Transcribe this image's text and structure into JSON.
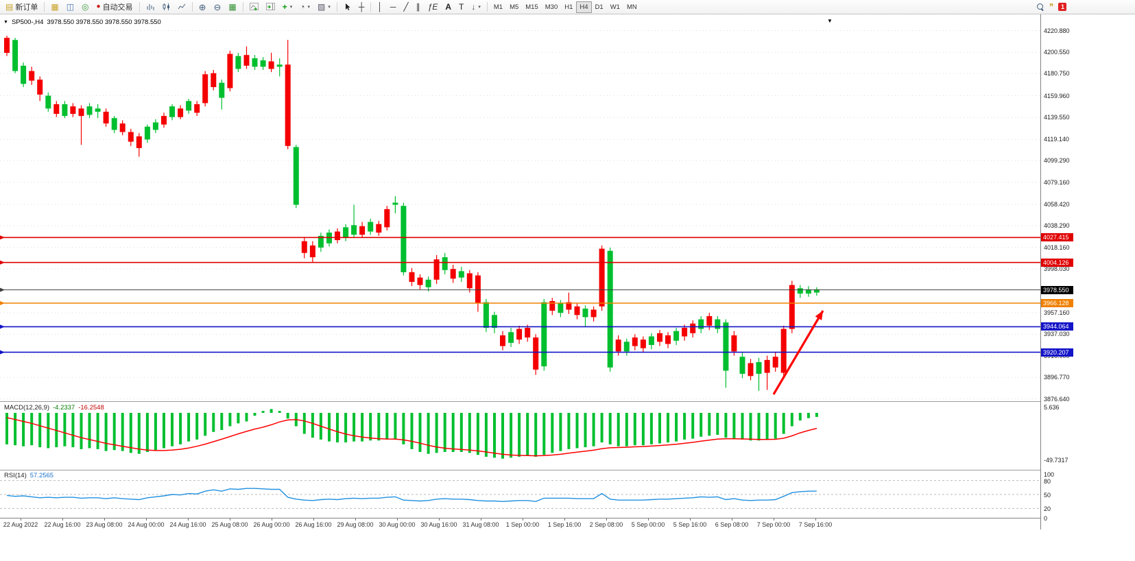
{
  "toolbar": {
    "new_order_label": "新订单",
    "auto_trading_label": "自动交易",
    "text_tool_label": "A",
    "label_tool_label": "T",
    "timeframes": [
      "M1",
      "M5",
      "M15",
      "M30",
      "H1",
      "H4",
      "D1",
      "W1",
      "MN"
    ],
    "active_timeframe": "H4",
    "notification_count": "1"
  },
  "chart_header": {
    "symbol_period": "SP500-,H4",
    "quote_line": "3978.550 3978.550 3978.550 3978.550"
  },
  "price_axis": {
    "labels": [
      "4220.880",
      "4200.550",
      "4180.750",
      "4159.960",
      "4139.550",
      "4119.140",
      "4099.290",
      "4079.160",
      "4058.420",
      "4038.290",
      "4018.160",
      "3998.030",
      "3957.160",
      "3937.030",
      "3916.900",
      "3896.770",
      "3876.640"
    ],
    "tags": [
      {
        "text": "4027.415",
        "value": 4027.415,
        "color": "#e00000"
      },
      {
        "text": "4004.126",
        "value": 4004.126,
        "color": "#e00000"
      },
      {
        "text": "3978.550",
        "value": 3978.55,
        "color": "#000000"
      },
      {
        "text": "3966.128",
        "value": 3966.128,
        "color": "#f08000"
      },
      {
        "text": "3944.064",
        "value": 3944.064,
        "color": "#1414c8"
      },
      {
        "text": "3920.207",
        "value": 3920.207,
        "color": "#1414c8"
      }
    ]
  },
  "chart_data": {
    "type": "candlestick",
    "symbol": "SP500-",
    "timeframe": "H4",
    "y_range": [
      3876.64,
      4220.88
    ],
    "candle_colors": {
      "r": "#f40000",
      "g": "#00bf2f"
    },
    "x_labels": [
      "22 Aug 2022",
      "22 Aug 16:00",
      "23 Aug 08:00",
      "24 Aug 00:00",
      "24 Aug 16:00",
      "25 Aug 08:00",
      "26 Aug 00:00",
      "26 Aug 16:00",
      "29 Aug 08:00",
      "30 Aug 00:00",
      "30 Aug 16:00",
      "31 Aug 08:00",
      "1 Sep 00:00",
      "1 Sep 16:00",
      "2 Sep 08:00",
      "5 Sep 00:00",
      "5 Sep 16:00",
      "6 Sep 08:00",
      "7 Sep 00:00",
      "7 Sep 16:00"
    ],
    "hlines": [
      {
        "price": 4027.415,
        "color": "#e00000"
      },
      {
        "price": 4004.126,
        "color": "#e00000"
      },
      {
        "price": 3978.55,
        "color": "#404040"
      },
      {
        "price": 3966.128,
        "color": "#f08000"
      },
      {
        "price": 3944.064,
        "color": "#1414c8"
      },
      {
        "price": 3920.207,
        "color": "#1414c8"
      }
    ],
    "annotation_arrow": {
      "color": "#ff0000"
    },
    "candles": [
      [
        4214,
        4200,
        4216,
        4197,
        "r"
      ],
      [
        4212,
        4183,
        4214,
        4181,
        "g"
      ],
      [
        4188,
        4171,
        4191,
        4168,
        "g"
      ],
      [
        4183,
        4174,
        4187,
        4170,
        "r"
      ],
      [
        4175,
        4161,
        4178,
        4155,
        "r"
      ],
      [
        4160,
        4148,
        4163,
        4145,
        "g"
      ],
      [
        4152,
        4143,
        4155,
        4140,
        "r"
      ],
      [
        4152,
        4141,
        4155,
        4139,
        "g"
      ],
      [
        4150,
        4143,
        4153,
        4140,
        "r"
      ],
      [
        4148,
        4141,
        4151,
        4114,
        "r"
      ],
      [
        4150,
        4142,
        4153,
        4139,
        "g"
      ],
      [
        4148,
        4145,
        4152,
        4139,
        "g"
      ],
      [
        4145,
        4134,
        4148,
        4131,
        "r"
      ],
      [
        4139,
        4128,
        4141,
        4125,
        "g"
      ],
      [
        4134,
        4126,
        4137,
        4123,
        "r"
      ],
      [
        4126,
        4117,
        4129,
        4113,
        "r"
      ],
      [
        4122,
        4111,
        4125,
        4103,
        "r"
      ],
      [
        4131,
        4119,
        4133,
        4116,
        "g"
      ],
      [
        4135,
        4128,
        4138,
        4125,
        "g"
      ],
      [
        4141,
        4133,
        4144,
        4130,
        "r"
      ],
      [
        4150,
        4140,
        4152,
        4137,
        "g"
      ],
      [
        4148,
        4140,
        4151,
        4138,
        "r"
      ],
      [
        4155,
        4146,
        4157,
        4143,
        "g"
      ],
      [
        4152,
        4144,
        4155,
        4141,
        "r"
      ],
      [
        4180,
        4153,
        4183,
        4150,
        "r"
      ],
      [
        4181,
        4168,
        4184,
        4165,
        "r"
      ],
      [
        4172,
        4158,
        4175,
        4147,
        "g"
      ],
      [
        4199,
        4167,
        4202,
        4164,
        "r"
      ],
      [
        4197,
        4185,
        4200,
        4182,
        "g"
      ],
      [
        4198,
        4188,
        4206,
        4185,
        "r"
      ],
      [
        4195,
        4187,
        4198,
        4184,
        "g"
      ],
      [
        4193,
        4187,
        4196,
        4184,
        "g"
      ],
      [
        4192,
        4185,
        4200,
        4182,
        "r"
      ],
      [
        4189,
        4187,
        4195,
        4178,
        "g"
      ],
      [
        4189,
        4113,
        4212,
        4110,
        "r"
      ],
      [
        4112,
        4058,
        4114,
        4055,
        "g"
      ],
      [
        4024,
        4013,
        4028,
        4008,
        "r"
      ],
      [
        4020,
        4009,
        4024,
        4004,
        "r"
      ],
      [
        4029,
        4018,
        4032,
        4014,
        "g"
      ],
      [
        4032,
        4022,
        4035,
        4019,
        "g"
      ],
      [
        4033,
        4025,
        4036,
        4022,
        "r"
      ],
      [
        4037,
        4027,
        4040,
        4024,
        "g"
      ],
      [
        4039,
        4030,
        4058,
        4027,
        "g"
      ],
      [
        4038,
        4030,
        4042,
        4027,
        "r"
      ],
      [
        4042,
        4033,
        4045,
        4030,
        "g"
      ],
      [
        4040,
        4032,
        4043,
        4029,
        "r"
      ],
      [
        4054,
        4037,
        4057,
        4034,
        "r"
      ],
      [
        4060,
        4058,
        4066,
        4050,
        "g"
      ],
      [
        4057,
        3995,
        4060,
        3992,
        "g"
      ],
      [
        3995,
        3986,
        3999,
        3982,
        "r"
      ],
      [
        3990,
        3983,
        3993,
        3979,
        "r"
      ],
      [
        3988,
        3981,
        3991,
        3977,
        "g"
      ],
      [
        4007,
        3988,
        4011,
        3984,
        "r"
      ],
      [
        4009,
        3997,
        4013,
        3993,
        "g"
      ],
      [
        3998,
        3989,
        4002,
        3985,
        "r"
      ],
      [
        3996,
        3990,
        4000,
        3986,
        "g"
      ],
      [
        3994,
        3980,
        3997,
        3976,
        "r"
      ],
      [
        3992,
        3966,
        3995,
        3958,
        "r"
      ],
      [
        3967,
        3943,
        3970,
        3939,
        "g"
      ],
      [
        3955,
        3943,
        3958,
        3938,
        "g"
      ],
      [
        3936,
        3926,
        3940,
        3922,
        "r"
      ],
      [
        3939,
        3929,
        3943,
        3925,
        "g"
      ],
      [
        3942,
        3932,
        3945,
        3928,
        "r"
      ],
      [
        3943,
        3934,
        3946,
        3930,
        "r"
      ],
      [
        3934,
        3904,
        3937,
        3899,
        "r"
      ],
      [
        3967,
        3907,
        3970,
        3903,
        "g"
      ],
      [
        3968,
        3959,
        3971,
        3955,
        "r"
      ],
      [
        3966,
        3957,
        3969,
        3953,
        "g"
      ],
      [
        3967,
        3960,
        3976,
        3956,
        "r"
      ],
      [
        3963,
        3955,
        3966,
        3951,
        "r"
      ],
      [
        3961,
        3953,
        3964,
        3944,
        "g"
      ],
      [
        3960,
        3953,
        3963,
        3949,
        "r"
      ],
      [
        4017,
        3963,
        4020,
        3959,
        "r"
      ],
      [
        4015,
        3906,
        4018,
        3902,
        "g"
      ],
      [
        3932,
        3921,
        3936,
        3917,
        "r"
      ],
      [
        3930,
        3921,
        3933,
        3917,
        "g"
      ],
      [
        3934,
        3926,
        3937,
        3922,
        "r"
      ],
      [
        3932,
        3924,
        3935,
        3920,
        "r"
      ],
      [
        3935,
        3927,
        3938,
        3923,
        "g"
      ],
      [
        3938,
        3930,
        3941,
        3926,
        "r"
      ],
      [
        3936,
        3928,
        3939,
        3924,
        "r"
      ],
      [
        3940,
        3931,
        3943,
        3927,
        "g"
      ],
      [
        3943,
        3935,
        3946,
        3931,
        "r"
      ],
      [
        3947,
        3938,
        3950,
        3934,
        "r"
      ],
      [
        3951,
        3942,
        3954,
        3938,
        "g"
      ],
      [
        3954,
        3945,
        3957,
        3941,
        "r"
      ],
      [
        3951,
        3942,
        3954,
        3938,
        "g"
      ],
      [
        3948,
        3903,
        3951,
        3887,
        "g"
      ],
      [
        3936,
        3921,
        3940,
        3917,
        "r"
      ],
      [
        3916,
        3900,
        3920,
        3896,
        "g"
      ],
      [
        3910,
        3898,
        3914,
        3894,
        "r"
      ],
      [
        3911,
        3900,
        3915,
        3884,
        "g"
      ],
      [
        3913,
        3901,
        3917,
        3885,
        "r"
      ],
      [
        3916,
        3906,
        3920,
        3902,
        "r"
      ],
      [
        3942,
        3901,
        3945,
        3897,
        "r"
      ],
      [
        3983,
        3942,
        3987,
        3938,
        "r"
      ],
      [
        3980,
        3975,
        3983,
        3971,
        "g"
      ],
      [
        3979,
        3975,
        3982,
        3972,
        "g"
      ],
      [
        3979,
        3976,
        3981,
        3973,
        "g"
      ]
    ],
    "macd": {
      "label": "MACD(12,26,9)",
      "value_main": "-4.2337",
      "value_signal": "-16.2548",
      "axis_labels": [
        "5.636",
        "-49.7317"
      ],
      "axis_values": [
        5.636,
        -49.7317
      ],
      "histogram": [
        -33,
        -34,
        -35,
        -34,
        -36,
        -37,
        -36,
        -35,
        -36,
        -38,
        -37,
        -38,
        -40,
        -39,
        -40,
        -42,
        -43,
        -41,
        -39,
        -37,
        -35,
        -33,
        -30,
        -28,
        -24,
        -20,
        -18,
        -14,
        -11,
        -9,
        -3,
        2,
        4,
        2,
        -6,
        -14,
        -22,
        -26,
        -28,
        -30,
        -31,
        -31,
        -30,
        -30,
        -29,
        -29,
        -28,
        -27,
        -33,
        -38,
        -41,
        -43,
        -42,
        -41,
        -41,
        -41,
        -42,
        -44,
        -46,
        -47,
        -48,
        -47,
        -46,
        -45,
        -46,
        -44,
        -42,
        -40,
        -38,
        -37,
        -36,
        -35,
        -31,
        -33,
        -35,
        -35,
        -34,
        -34,
        -33,
        -32,
        -31,
        -30,
        -28,
        -27,
        -25,
        -24,
        -23,
        -26,
        -27,
        -28,
        -29,
        -29,
        -28,
        -27,
        -22,
        -14,
        -8,
        -5.5,
        -4.23
      ],
      "signal": [
        -5,
        -7,
        -9,
        -11,
        -13.5,
        -16,
        -18.5,
        -21,
        -23.5,
        -26,
        -28,
        -30,
        -32,
        -33.5,
        -35,
        -36.5,
        -38,
        -39,
        -39.5,
        -39.5,
        -39,
        -38.2,
        -36.8,
        -35,
        -32.8,
        -30.2,
        -27.6,
        -24.8,
        -22,
        -19.4,
        -17,
        -15,
        -12.5,
        -9.5,
        -7.5,
        -7,
        -8.5,
        -11,
        -14,
        -17,
        -19.8,
        -22.2,
        -24,
        -25.4,
        -26.4,
        -27,
        -27.4,
        -27.5,
        -28.3,
        -29.8,
        -31.8,
        -34,
        -35.8,
        -37,
        -37.8,
        -38.4,
        -39,
        -39.9,
        -41,
        -42.2,
        -43.4,
        -44.2,
        -44.6,
        -44.7,
        -45,
        -44.8,
        -44.2,
        -43.4,
        -42.3,
        -41.2,
        -40.2,
        -39.1,
        -37.5,
        -36.6,
        -36.3,
        -36,
        -35.6,
        -35.3,
        -34.8,
        -34.2,
        -33.6,
        -32.9,
        -31.9,
        -30.9,
        -29.7,
        -28.6,
        -27.5,
        -27.2,
        -27.1,
        -27.3,
        -27.6,
        -27.9,
        -27.9,
        -27.7,
        -26.6,
        -24.1,
        -20.9,
        -18.4,
        -16.25
      ]
    },
    "rsi": {
      "label": "RSI(14)",
      "value": "57.2565",
      "axis_labels": [
        "100",
        "80",
        "50",
        "20",
        "0"
      ],
      "levels": [
        80,
        50,
        20
      ],
      "series": [
        48,
        46,
        47,
        45,
        43,
        44,
        43,
        44,
        44,
        42,
        43,
        43,
        41,
        43,
        41,
        40,
        39,
        43,
        45,
        47,
        50,
        49,
        52,
        51,
        57,
        60,
        57,
        62,
        61,
        63,
        63,
        62,
        61,
        61,
        44,
        40,
        38,
        37,
        39,
        40,
        39,
        41,
        42,
        41,
        42,
        42,
        44,
        45,
        38,
        37,
        36,
        37,
        40,
        41,
        40,
        40,
        39,
        37,
        36,
        36,
        35,
        36,
        37,
        37,
        35,
        42,
        42,
        42,
        42,
        41,
        41,
        41,
        52,
        40,
        38,
        38,
        38,
        38,
        39,
        40,
        40,
        41,
        42,
        43,
        45,
        44,
        45,
        39,
        41,
        38,
        37,
        38,
        38,
        39,
        46,
        54,
        56,
        57,
        57.26
      ]
    }
  }
}
